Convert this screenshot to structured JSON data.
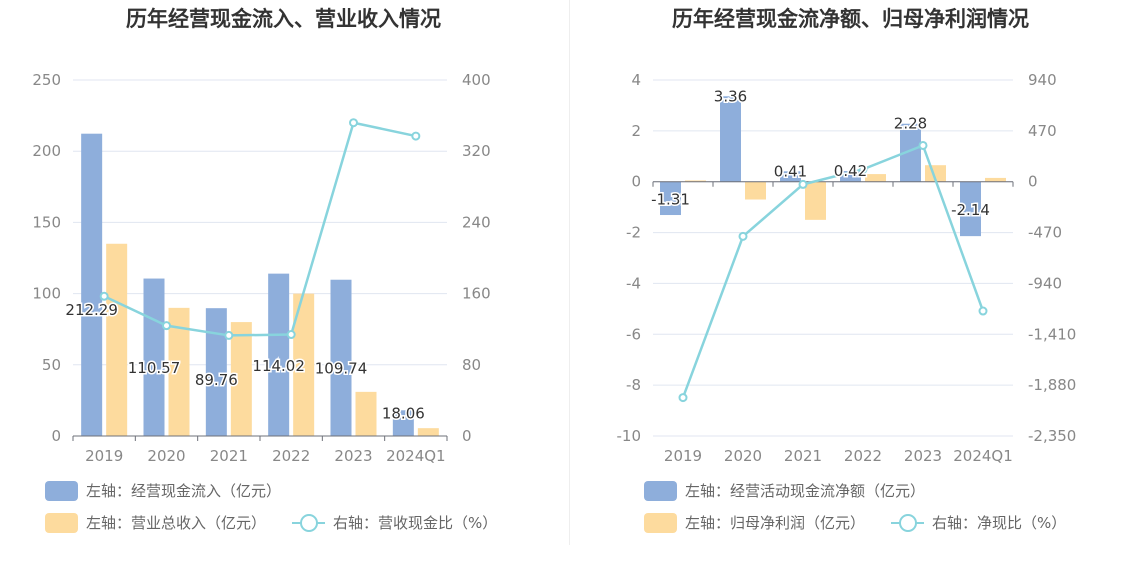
{
  "colors": {
    "bar_blue": "#8eaedb",
    "bar_orange": "#fddb9e",
    "line_teal": "#88d4dd",
    "grid": "#e0e6f1",
    "axis_text": "#888888",
    "title": "#333333",
    "legend_text": "#666666"
  },
  "left": {
    "title": "历年经营现金流入、营业收入情况",
    "legend": {
      "bar1": "左轴：经营现金流入（亿元）",
      "bar2": "左轴：营业总收入（亿元）",
      "line": "右轴：营收现金比（%）"
    }
  },
  "right": {
    "title": "历年经营现金流净额、归母净利润情况",
    "legend": {
      "bar1": "左轴：经营活动现金流净额（亿元）",
      "bar2": "左轴：归母净利润（亿元）",
      "line": "右轴：净现比（%）"
    }
  },
  "chart_data": [
    {
      "type": "bar",
      "title": "历年经营现金流入、营业收入情况",
      "categories": [
        "2019",
        "2020",
        "2021",
        "2022",
        "2023",
        "2024Q1"
      ],
      "ylim_left": [
        0,
        250
      ],
      "yticks_left": [
        "0",
        "50",
        "100",
        "150",
        "200",
        "250"
      ],
      "ylim_right": [
        0,
        400
      ],
      "yticks_right": [
        "0",
        "80",
        "160",
        "240",
        "320",
        "400"
      ],
      "grid": true,
      "legend_position": "bottom-left",
      "series": [
        {
          "name": "左轴：经营现金流入（亿元）",
          "axis": "left",
          "kind": "bar",
          "values": [
            212.29,
            110.57,
            89.76,
            114.02,
            109.74,
            18.06
          ],
          "labels": [
            "212.29",
            "110.57",
            "89.76",
            "114.02",
            "109.74",
            "18.06"
          ]
        },
        {
          "name": "左轴：营业总收入（亿元）",
          "axis": "left",
          "kind": "bar",
          "values": [
            135,
            90,
            80,
            100,
            31,
            5.5
          ]
        },
        {
          "name": "右轴：营收现金比（%）",
          "axis": "right",
          "kind": "line",
          "values": [
            157,
            124,
            113,
            114,
            352,
            337
          ]
        }
      ]
    },
    {
      "type": "bar",
      "title": "历年经营现金流净额、归母净利润情况",
      "categories": [
        "2019",
        "2020",
        "2021",
        "2022",
        "2023",
        "2024Q1"
      ],
      "ylim_left": [
        -10,
        4
      ],
      "yticks_left": [
        "-10",
        "-8",
        "-6",
        "-4",
        "-2",
        "0",
        "2",
        "4"
      ],
      "ylim_right": [
        -2350,
        940
      ],
      "yticks_right": [
        "-2,350",
        "-1,880",
        "-1,410",
        "-940",
        "-470",
        "0",
        "470",
        "940"
      ],
      "grid": true,
      "legend_position": "bottom-left",
      "series": [
        {
          "name": "左轴：经营活动现金流净额（亿元）",
          "axis": "left",
          "kind": "bar",
          "values": [
            -1.31,
            3.36,
            0.41,
            0.42,
            2.28,
            -2.14
          ],
          "labels": [
            "-1.31",
            "3.36",
            "0.41",
            "0.42",
            "2.28",
            "-2.14"
          ]
        },
        {
          "name": "左轴：归母净利润（亿元）",
          "axis": "left",
          "kind": "bar",
          "values": [
            0.05,
            -0.7,
            -1.5,
            0.3,
            0.65,
            0.15
          ]
        },
        {
          "name": "右轴：净现比（%）",
          "axis": "right",
          "kind": "line",
          "values": [
            -1995,
            -505,
            -25,
            115,
            335,
            -1195
          ]
        }
      ]
    }
  ]
}
